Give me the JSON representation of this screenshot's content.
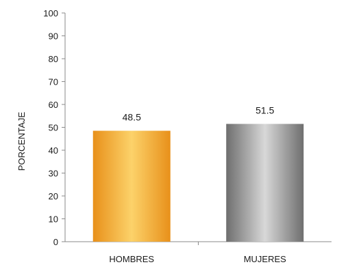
{
  "chart_data": {
    "type": "bar",
    "title": "",
    "xlabel": "",
    "ylabel": "PORCENTAJE",
    "ylim": [
      0,
      100
    ],
    "yticks": [
      0,
      10,
      20,
      30,
      40,
      50,
      60,
      70,
      80,
      90,
      100
    ],
    "categories": [
      "HOMBRES",
      "MUJERES"
    ],
    "values": [
      48.5,
      51.5
    ],
    "data_labels": [
      "48.5",
      "51.5"
    ],
    "grid": false,
    "legend": "none",
    "colors": {
      "HOMBRES": [
        "#e8901a",
        "#fcd26a"
      ],
      "MUJERES": [
        "#6e6e6e",
        "#d8d8d8"
      ]
    }
  }
}
